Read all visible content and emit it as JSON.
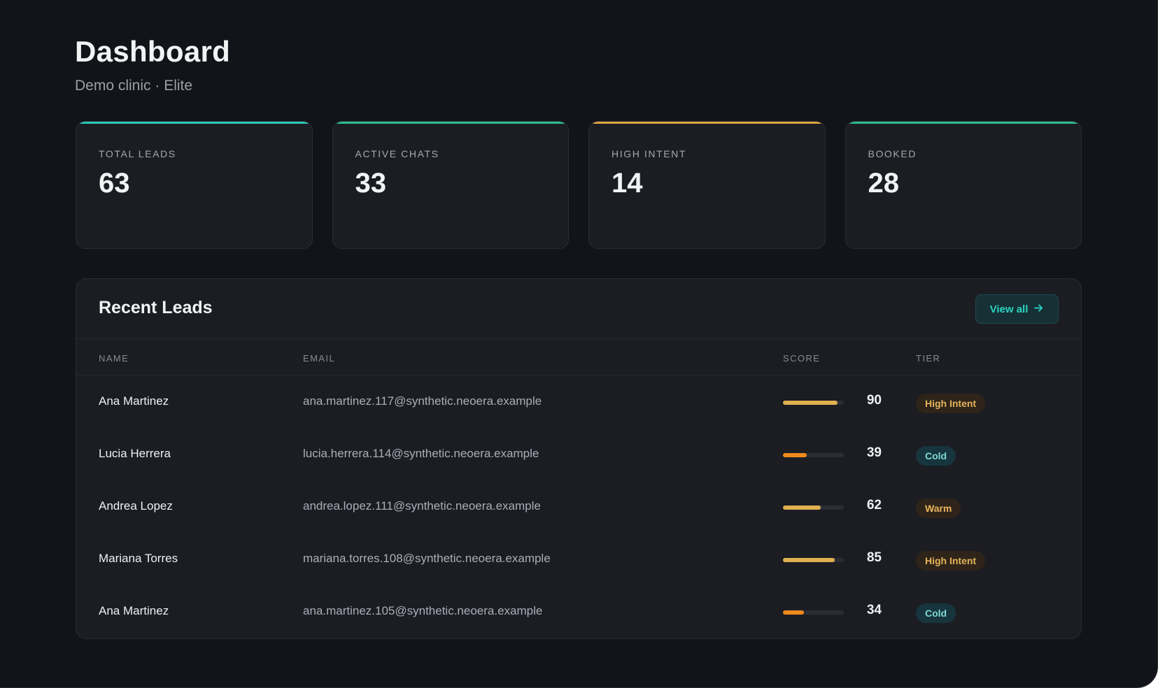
{
  "header": {
    "title": "Dashboard",
    "subtitle": "Demo clinic · Elite"
  },
  "stats": [
    {
      "label": "TOTAL LEADS",
      "value": "63",
      "accent": "#2cc9b5"
    },
    {
      "label": "ACTIVE CHATS",
      "value": "33",
      "accent": "#2bbf8e"
    },
    {
      "label": "HIGH INTENT",
      "value": "14",
      "accent": "#e0a640"
    },
    {
      "label": "BOOKED",
      "value": "28",
      "accent": "#2bbf8e"
    }
  ],
  "recent_leads": {
    "title": "Recent Leads",
    "view_all_label": "View all",
    "view_all_icon": "arrow-right-icon",
    "columns": [
      "NAME",
      "EMAIL",
      "SCORE",
      "TIER"
    ],
    "rows": [
      {
        "name": "Ana Martinez",
        "email": "ana.martinez.117@synthetic.neoera.example",
        "score": 90,
        "score_display": "90",
        "tier": "High Intent",
        "tier_kind": "high",
        "bar_color": "#e0b04f"
      },
      {
        "name": "Lucia Herrera",
        "email": "lucia.herrera.114@synthetic.neoera.example",
        "score": 39,
        "score_display": "39",
        "tier": "Cold",
        "tier_kind": "cold",
        "bar_color": "#f08a1c"
      },
      {
        "name": "Andrea Lopez",
        "email": "andrea.lopez.111@synthetic.neoera.example",
        "score": 62,
        "score_display": "62",
        "tier": "Warm",
        "tier_kind": "warm",
        "bar_color": "#e0b04f"
      },
      {
        "name": "Mariana Torres",
        "email": "mariana.torres.108@synthetic.neoera.example",
        "score": 85,
        "score_display": "85",
        "tier": "High Intent",
        "tier_kind": "high",
        "bar_color": "#e0b04f"
      },
      {
        "name": "Ana Martinez",
        "email": "ana.martinez.105@synthetic.neoera.example",
        "score": 34,
        "score_display": "34",
        "tier": "Cold",
        "tier_kind": "cold",
        "bar_color": "#f08a1c"
      }
    ]
  }
}
